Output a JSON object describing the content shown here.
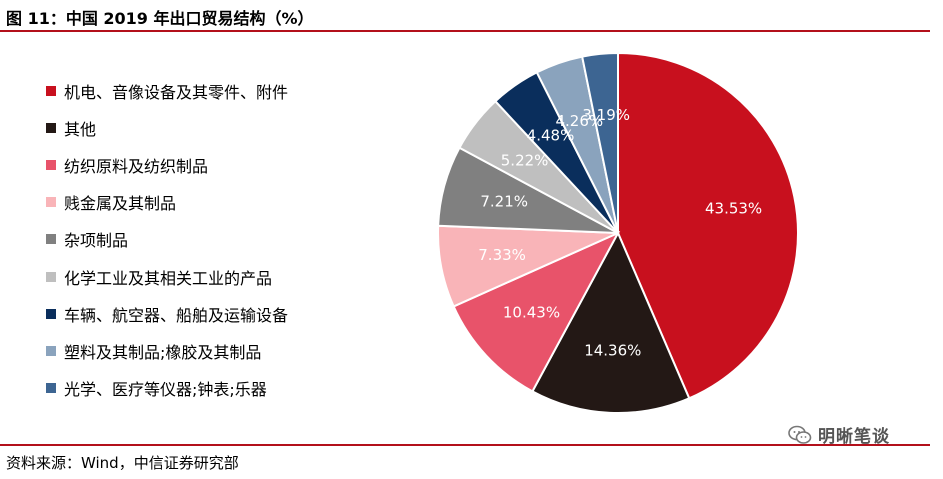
{
  "title": "图 11：中国 2019 年出口贸易结构（%）",
  "source": "资料来源：Wind，中信证券研究部",
  "watermark": "明晰笔谈",
  "chart_data": {
    "type": "pie",
    "title": "图 11：中国 2019 年出口贸易结构（%）",
    "legend_position": "left",
    "start_angle_deg": 0,
    "direction": "clockwise",
    "slices": [
      {
        "name": "机电、音像设备及其零件、附件",
        "value": 43.53,
        "label": "43.53%",
        "color": "#c8101e",
        "label_color": "#ffffff"
      },
      {
        "name": "其他",
        "value": 14.36,
        "label": "14.36%",
        "color": "#231815",
        "label_color": "#ffffff"
      },
      {
        "name": "纺织原料及纺织制品",
        "value": 10.43,
        "label": "10.43%",
        "color": "#e8536a",
        "label_color": "#ffffff"
      },
      {
        "name": "贱金属及其制品",
        "value": 7.33,
        "label": "7.33%",
        "color": "#f9b4b8",
        "label_color": "#ffffff"
      },
      {
        "name": "杂项制品",
        "value": 7.21,
        "label": "7.21%",
        "color": "#808080",
        "label_color": "#ffffff"
      },
      {
        "name": "化学工业及其相关工业的产品",
        "value": 5.22,
        "label": "5.22%",
        "color": "#bfbfbf",
        "label_color": "#ffffff"
      },
      {
        "name": "车辆、航空器、船舶及运输设备",
        "value": 4.48,
        "label": "4.48%",
        "color": "#0a2e5c",
        "label_color": "#ffffff"
      },
      {
        "name": "塑料及其制品;橡胶及其制品",
        "value": 4.26,
        "label": "4.26%",
        "color": "#8aa3bd",
        "label_color": "#ffffff"
      },
      {
        "name": "光学、医疗等仪器;钟表;乐器",
        "value": 3.19,
        "label": "3.19%",
        "color": "#3d6592",
        "label_color": "#ffffff"
      }
    ]
  }
}
